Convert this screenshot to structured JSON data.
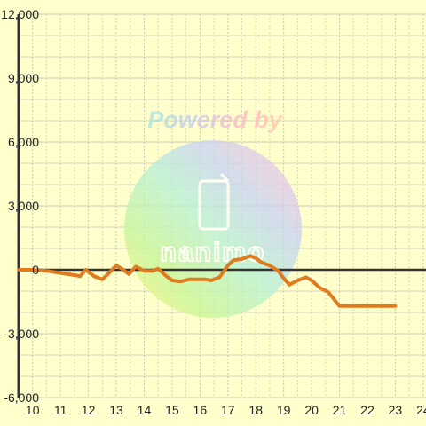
{
  "watermark": {
    "powered_by": "Powered by",
    "logo_text": "nanimo"
  },
  "chart_data": {
    "type": "line",
    "xlim": [
      9.5,
      24.1
    ],
    "ylim": [
      -6000,
      12000
    ],
    "x_ticks": [
      10,
      11,
      12,
      13,
      14,
      15,
      16,
      17,
      18,
      19,
      20,
      21,
      22,
      23,
      24
    ],
    "x_tick_labels": [
      "10",
      "11",
      "12",
      "13",
      "14",
      "15",
      "16",
      "17",
      "18",
      "19",
      "20",
      "21",
      "22",
      "23",
      "24"
    ],
    "y_ticks": [
      -6000,
      -3000,
      0,
      3000,
      6000,
      9000,
      12000
    ],
    "y_tick_labels": [
      "-6,000",
      "-3,000",
      "0",
      "3,000",
      "6,000",
      "9,000",
      "12,000"
    ],
    "grid": true,
    "colors": {
      "background": "#ffffcc",
      "line": "#e07b20",
      "zero_line": "#333333",
      "grid_major": "#c8c8b4",
      "grid_minor": "#d6d6c0"
    },
    "series": [
      {
        "x": [
          9.5,
          10.0,
          10.5,
          11.0,
          11.5,
          11.7,
          11.9,
          12.2,
          12.5,
          12.7,
          13.0,
          13.2,
          13.45,
          13.7,
          14.0,
          14.3,
          14.5,
          14.75,
          15.0,
          15.3,
          15.6,
          15.9,
          16.2,
          16.4,
          16.7,
          17.0,
          17.2,
          17.5,
          17.8,
          18.0,
          18.2,
          18.5,
          18.8,
          19.0,
          19.2,
          19.5,
          19.8,
          20.0,
          20.3,
          20.6,
          21.0,
          21.5,
          22.0,
          22.5,
          23.0
        ],
        "y": [
          0,
          0,
          -50,
          -150,
          -250,
          -300,
          0,
          -300,
          -450,
          -200,
          200,
          50,
          -200,
          150,
          -50,
          -50,
          50,
          -250,
          -500,
          -550,
          -450,
          -450,
          -450,
          -500,
          -350,
          200,
          450,
          500,
          650,
          550,
          350,
          200,
          -50,
          -400,
          -700,
          -500,
          -350,
          -500,
          -850,
          -1050,
          -1700,
          -1700,
          -1700,
          -1700,
          -1700
        ]
      }
    ]
  }
}
